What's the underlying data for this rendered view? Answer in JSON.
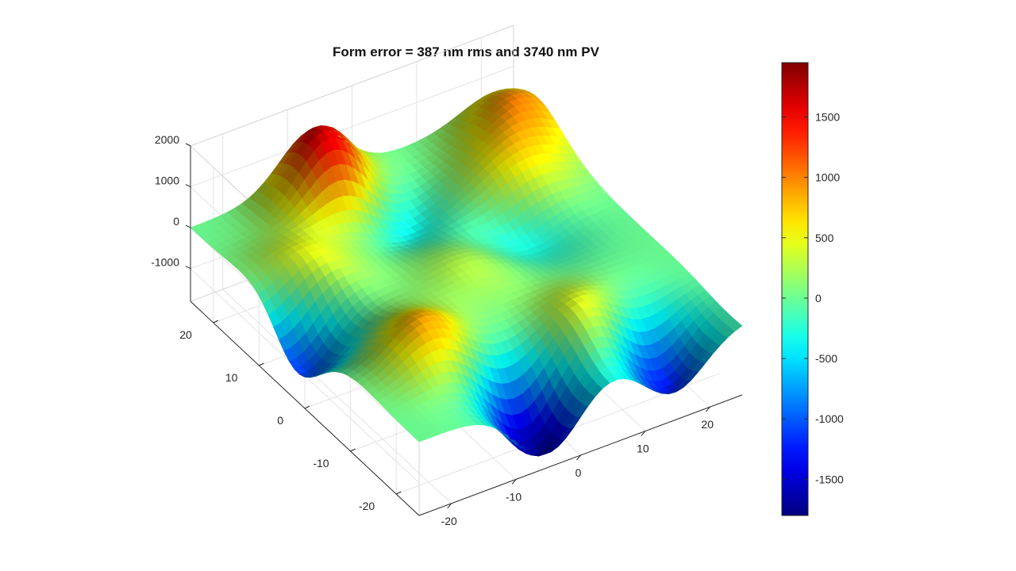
{
  "chart_data": {
    "type": "surface3d",
    "title": "Form error = 387 nm rms and 3740 nm PV",
    "xlabel": "",
    "ylabel": "",
    "zlabel": "",
    "x_ticks": [
      -20,
      -10,
      0,
      10,
      20
    ],
    "y_ticks": [
      -20,
      -10,
      0,
      10,
      20
    ],
    "z_ticks": [
      -1000,
      0,
      1000,
      2000
    ],
    "xlim": [
      -25,
      25
    ],
    "ylim": [
      -25,
      25
    ],
    "zlim": [
      -1800,
      2000
    ],
    "grid": true,
    "colormap": "jet",
    "colorbar": {
      "ticks": [
        -1500,
        -1000,
        -500,
        0,
        500,
        1000,
        1500
      ],
      "clim": [
        -1800,
        1950
      ]
    },
    "surface_peaks": [
      {
        "x": -6,
        "y": 21,
        "z": 1950
      },
      {
        "x": 0,
        "y": 0,
        "z": 300
      },
      {
        "x": -14,
        "y": -11,
        "z": 900
      },
      {
        "x": 16,
        "y": 12,
        "z": 600
      },
      {
        "x": 9,
        "y": -17,
        "z": 800
      },
      {
        "x": -18,
        "y": 9,
        "z": 600
      },
      {
        "x": -24,
        "y": 2,
        "z": -1200
      },
      {
        "x": -5,
        "y": -22,
        "z": -1750
      },
      {
        "x": 14,
        "y": -22,
        "z": -1500
      },
      {
        "x": -2,
        "y": 16,
        "z": -800
      },
      {
        "x": 12,
        "y": 4,
        "z": -400
      },
      {
        "x": 22,
        "y": 20,
        "z": 900
      }
    ]
  }
}
